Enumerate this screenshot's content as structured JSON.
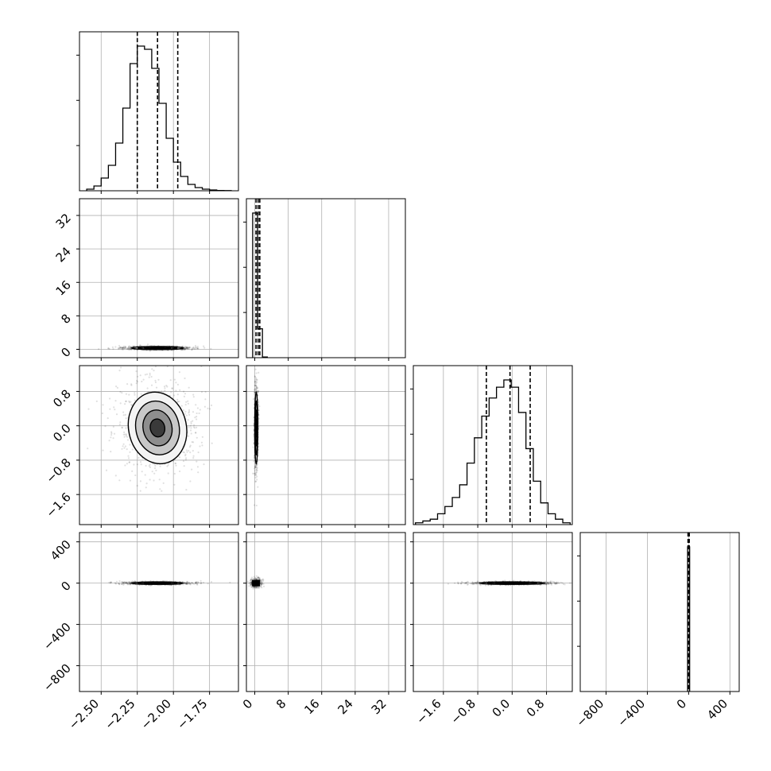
{
  "chart_data": {
    "type": "corner",
    "title": "",
    "parameters": [
      {
        "id": "p0",
        "label": "",
        "range": [
          -2.65,
          -1.55
        ],
        "ticks": [
          -2.5,
          -2.25,
          -2.0,
          -1.75
        ],
        "tick_labels": [
          "−2.50",
          "−2.25",
          "−2.00",
          "−1.75"
        ],
        "quantiles": [
          -2.25,
          -2.11,
          -1.97
        ]
      },
      {
        "id": "p1",
        "label": "",
        "range": [
          -2,
          36
        ],
        "ticks": [
          0,
          8,
          16,
          24,
          32
        ],
        "tick_labels": [
          "0",
          "8",
          "16",
          "24",
          "32"
        ],
        "quantiles": [
          0.3,
          0.8,
          1.2
        ]
      },
      {
        "id": "p2",
        "label": "",
        "range": [
          -2.3,
          1.4
        ],
        "ticks": [
          -1.6,
          -0.8,
          0.0,
          0.8
        ],
        "tick_labels": [
          "−1.6",
          "−0.8",
          "0.0",
          "0.8"
        ],
        "quantiles": [
          -0.6,
          -0.05,
          0.42
        ]
      },
      {
        "id": "p3",
        "label": "",
        "range": [
          -1050,
          490
        ],
        "ticks": [
          -800,
          -400,
          0,
          400
        ],
        "tick_labels": [
          "−800",
          "−400",
          "0",
          "400"
        ],
        "quantiles": [
          -6,
          0,
          6
        ]
      }
    ],
    "histograms": [
      {
        "param": "p0",
        "bins": [
          -2.6,
          -1.6
        ],
        "counts": [
          1,
          3,
          8,
          16,
          30,
          52,
          80,
          91,
          89,
          77,
          55,
          33,
          18,
          9,
          4,
          2,
          1,
          0.5,
          0.2,
          0.1
        ]
      },
      {
        "param": "p1",
        "bins": [
          -0.5,
          3.0
        ],
        "counts": [
          100,
          20,
          0.5
        ]
      },
      {
        "param": "p2",
        "bins": [
          -2.25,
          1.35
        ],
        "counts": [
          1,
          2,
          3,
          6,
          10,
          15,
          22,
          34,
          48,
          60,
          70,
          76,
          80,
          76,
          62,
          42,
          24,
          12,
          6,
          3,
          1
        ]
      },
      {
        "param": "p3",
        "bins": [
          -10,
          10
        ],
        "counts": [
          100
        ]
      }
    ],
    "pairs": [
      {
        "x": "p0",
        "y": "p1",
        "center": [
          -2.11,
          0.3
        ],
        "spread": [
          0.09,
          0.18
        ],
        "kind": "ellipse-contours"
      },
      {
        "x": "p0",
        "y": "p2",
        "center": [
          -2.11,
          -0.05
        ],
        "spread": [
          0.1,
          0.42
        ],
        "kind": "blob-contours"
      },
      {
        "x": "p1",
        "y": "p2",
        "center": [
          0.35,
          -0.05
        ],
        "spread": [
          0.18,
          0.42
        ],
        "kind": "narrow-contours"
      },
      {
        "x": "p0",
        "y": "p3",
        "center": [
          -2.11,
          0
        ],
        "spread": [
          0.09,
          6
        ],
        "kind": "ellipse-contours"
      },
      {
        "x": "p1",
        "y": "p3",
        "center": [
          0.3,
          0
        ],
        "spread": [
          0.2,
          6
        ],
        "kind": "point-cluster"
      },
      {
        "x": "p2",
        "y": "p3",
        "center": [
          0.0,
          0
        ],
        "spread": [
          0.38,
          6
        ],
        "kind": "ellipse-contours"
      }
    ],
    "grid": true,
    "legend": "none"
  }
}
